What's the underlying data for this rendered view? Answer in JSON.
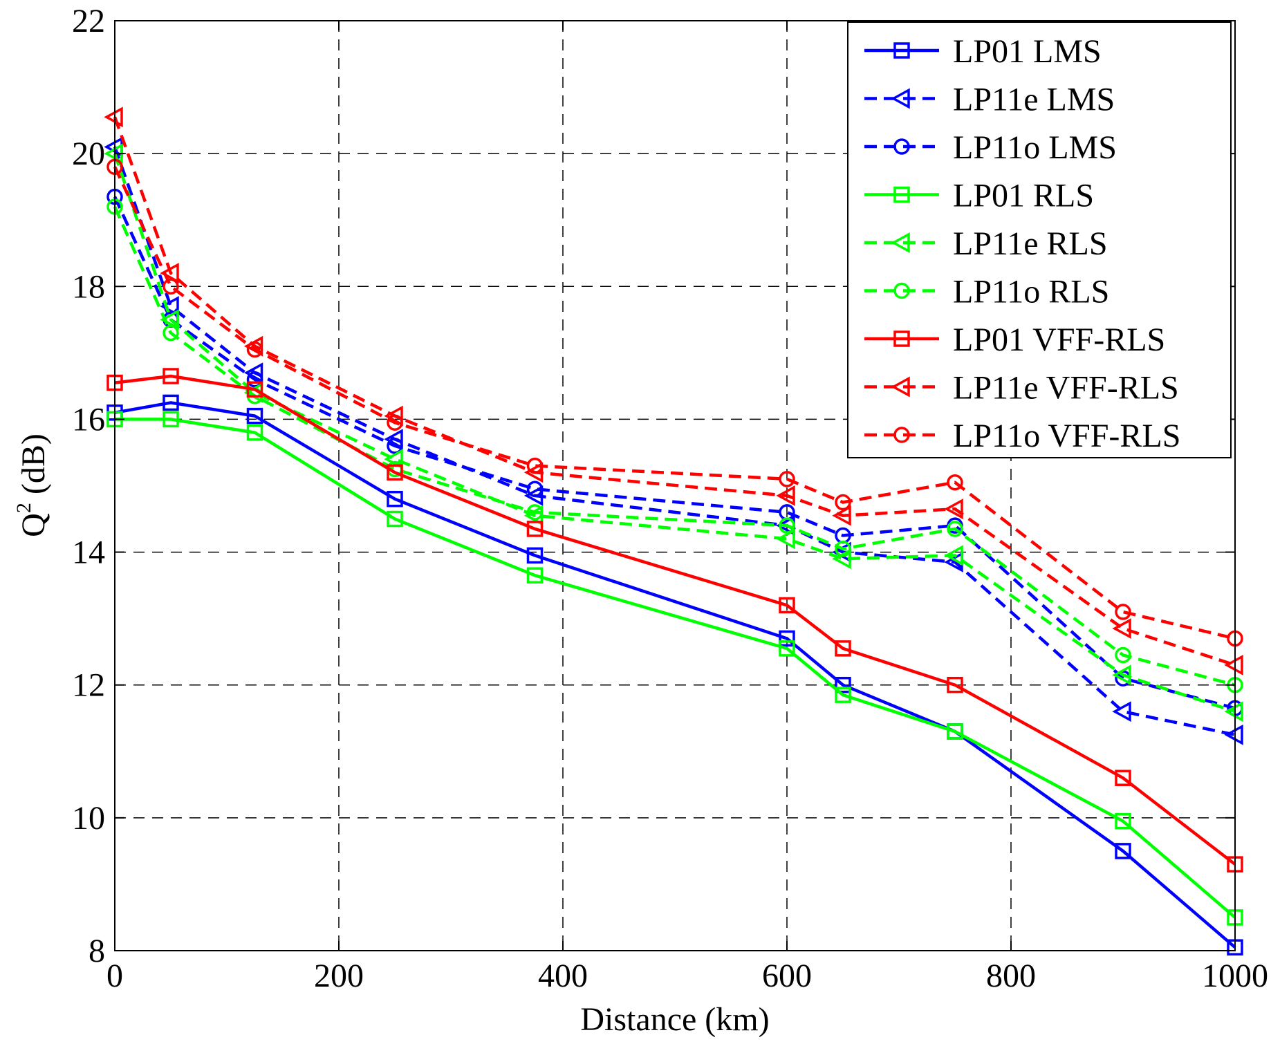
{
  "chart_data": {
    "type": "line",
    "title": "",
    "xlabel": "Distance (km)",
    "ylabel_base": "Q",
    "ylabel_sup": "2",
    "ylabel_unit": " (dB)",
    "xlim": [
      0,
      1000
    ],
    "ylim": [
      8,
      22
    ],
    "xticks": [
      0,
      200,
      400,
      600,
      800,
      1000
    ],
    "yticks": [
      8,
      10,
      12,
      14,
      16,
      18,
      20,
      22
    ],
    "xtick_labels": [
      "0",
      "200",
      "400",
      "600",
      "800",
      "1000"
    ],
    "ytick_labels": [
      "8",
      "10",
      "12",
      "14",
      "16",
      "18",
      "20",
      "22"
    ],
    "grid": true,
    "legend_position": "top-right",
    "x": [
      0,
      50,
      125,
      250,
      375,
      600,
      650,
      750,
      900,
      1000
    ],
    "series": [
      {
        "name": "LP01 LMS",
        "color": "#0000ff",
        "dash": "solid",
        "marker": "square",
        "values": [
          16.1,
          16.25,
          16.05,
          14.8,
          13.95,
          12.7,
          12.0,
          11.3,
          9.5,
          8.05
        ]
      },
      {
        "name": "LP11e LMS",
        "color": "#0000ff",
        "dash": "dashed",
        "marker": "triangle-left",
        "values": [
          20.1,
          17.7,
          16.7,
          15.7,
          14.85,
          14.4,
          14.0,
          13.85,
          11.6,
          11.25
        ]
      },
      {
        "name": "LP11o LMS",
        "color": "#0000ff",
        "dash": "dashed",
        "marker": "circle",
        "values": [
          19.35,
          17.5,
          16.6,
          15.6,
          14.95,
          14.6,
          14.25,
          14.4,
          12.1,
          11.65
        ]
      },
      {
        "name": "LP01 RLS",
        "color": "#00ff00",
        "dash": "solid",
        "marker": "square",
        "values": [
          16.0,
          16.0,
          15.8,
          14.5,
          13.65,
          12.55,
          11.85,
          11.3,
          9.95,
          8.5
        ]
      },
      {
        "name": "LP11e RLS",
        "color": "#00ff00",
        "dash": "dashed",
        "marker": "triangle-left",
        "values": [
          20.0,
          17.5,
          16.4,
          15.4,
          14.55,
          14.2,
          13.9,
          13.95,
          12.15,
          11.6
        ]
      },
      {
        "name": "LP11o RLS",
        "color": "#00ff00",
        "dash": "dashed",
        "marker": "circle",
        "values": [
          19.2,
          17.3,
          16.35,
          15.25,
          14.6,
          14.4,
          14.05,
          14.35,
          12.45,
          12.0
        ]
      },
      {
        "name": "LP01 VFF-RLS",
        "color": "#ff0000",
        "dash": "solid",
        "marker": "square",
        "values": [
          16.55,
          16.65,
          16.45,
          15.2,
          14.35,
          13.2,
          12.55,
          12.0,
          10.6,
          9.3
        ]
      },
      {
        "name": "LP11e VFF-RLS",
        "color": "#ff0000",
        "dash": "dashed",
        "marker": "triangle-left",
        "values": [
          20.55,
          18.2,
          17.1,
          16.05,
          15.2,
          14.85,
          14.55,
          14.65,
          12.85,
          12.3
        ]
      },
      {
        "name": "LP11o VFF-RLS",
        "color": "#ff0000",
        "dash": "dashed",
        "marker": "circle",
        "values": [
          19.8,
          18.0,
          17.05,
          15.95,
          15.3,
          15.1,
          14.75,
          15.05,
          13.1,
          12.7
        ]
      }
    ]
  }
}
